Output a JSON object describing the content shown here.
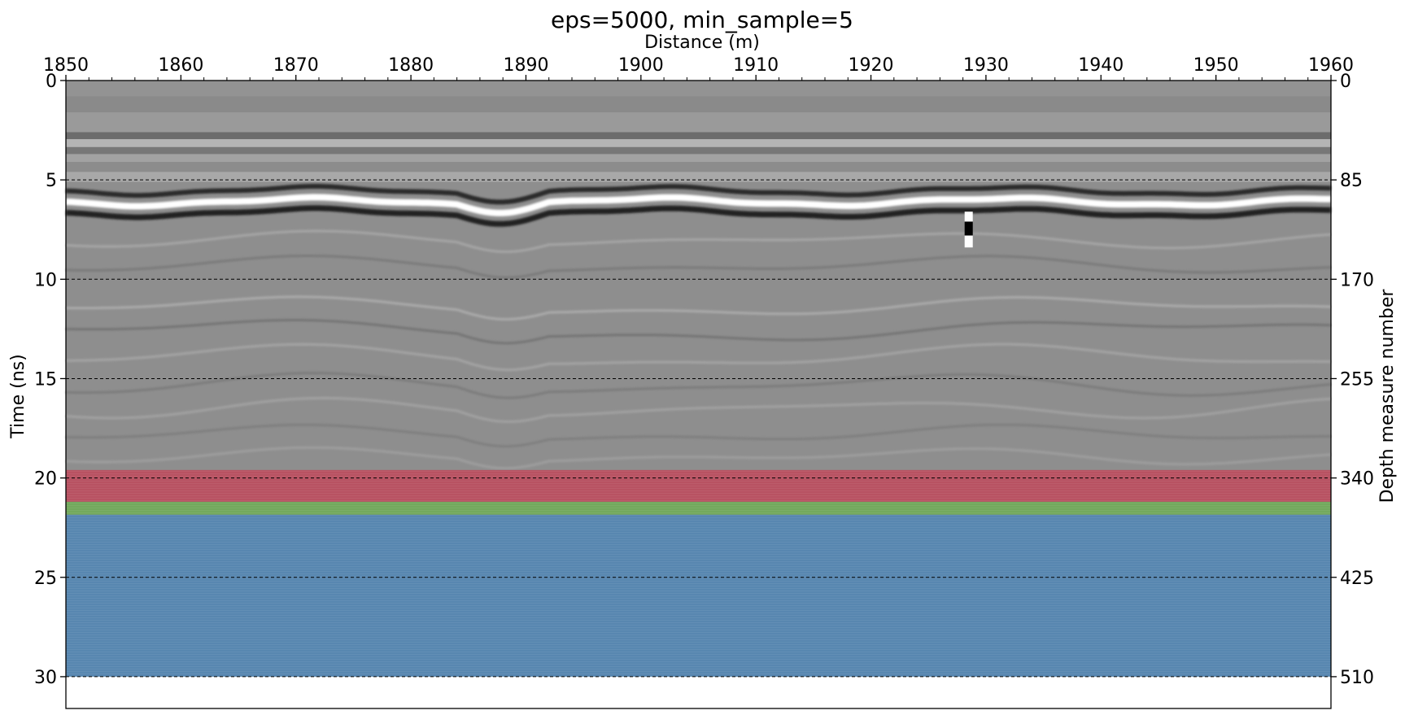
{
  "chart_data": {
    "type": "heatmap",
    "title": "eps=5000, min_sample=5",
    "xlabel": "Distance (m)",
    "ylabel": "Time (ns)",
    "y2label": "Depth measure number",
    "xlim": [
      1850,
      1960
    ],
    "ylim": [
      0,
      31.6
    ],
    "x_ticks": [
      "1850",
      "1860",
      "1870",
      "1880",
      "1890",
      "1900",
      "1910",
      "1920",
      "1930",
      "1940",
      "1950",
      "1960"
    ],
    "y_ticks": [
      "0",
      "5",
      "10",
      "15",
      "20",
      "25",
      "30"
    ],
    "y2_ticks": [
      "0",
      "85",
      "170",
      "255",
      "340",
      "425",
      "510"
    ],
    "gridlines_y": [
      5,
      10,
      15,
      20,
      25,
      30
    ],
    "data_extent_time": [
      0,
      30
    ],
    "colormap": "gray",
    "cluster_bands": [
      {
        "label": "",
        "t_start": 19.6,
        "t_end": 21.2,
        "color": "#c0485a"
      },
      {
        "label": "",
        "t_start": 21.2,
        "t_end": 21.85,
        "color": "#6fae55"
      },
      {
        "label": "",
        "t_start": 21.85,
        "t_end": 30.0,
        "color": "#4f86b6"
      }
    ],
    "features": {
      "surface_reflection_time": 6.1,
      "point_reflector_distance": 1928.5,
      "point_reflector_time": 7.5
    }
  }
}
